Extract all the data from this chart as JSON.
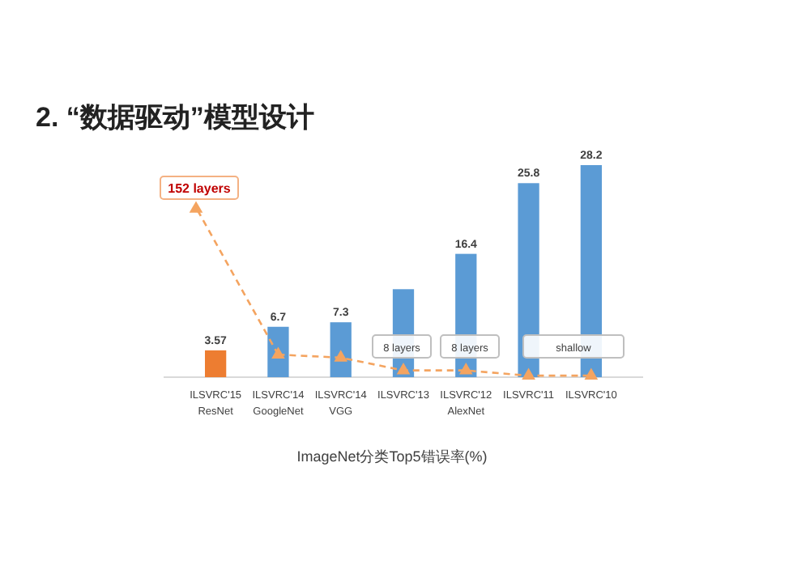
{
  "chart_data": {
    "type": "bar",
    "title": "2. “数据驱动”模型设计",
    "xlabel": "ImageNet分类Top5错误率(%)",
    "categories": [
      "ILSVRC'15\nResNet",
      "ILSVRC'14\nGoogleNet",
      "ILSVRC'14\nVGG",
      "ILSVRC'13",
      "ILSVRC'12\nAlexNet",
      "ILSVRC'11",
      "ILSVRC'10"
    ],
    "series": [
      {
        "type": "bar",
        "colors": [
          "#ed7d31",
          "#5b9bd5",
          "#5b9bd5",
          "#5b9bd5",
          "#5b9bd5",
          "#5b9bd5",
          "#5b9bd5"
        ],
        "values": [
          3.57,
          6.7,
          7.3,
          11.7,
          16.4,
          25.8,
          28.2
        ],
        "value_labels": [
          "3.57",
          "6.7",
          "7.3",
          null,
          "16.4",
          "25.8",
          "28.2"
        ]
      },
      {
        "type": "line",
        "color": "#f4a460",
        "line_style": "dashed",
        "marker": "triangle",
        "values": [
          null,
          3.0,
          2.6,
          0.9,
          0.9,
          0.2,
          0.2
        ]
      }
    ],
    "annotations": [
      "152 layers",
      "8 layers",
      "8 layers",
      "shallow"
    ],
    "grid": false
  }
}
